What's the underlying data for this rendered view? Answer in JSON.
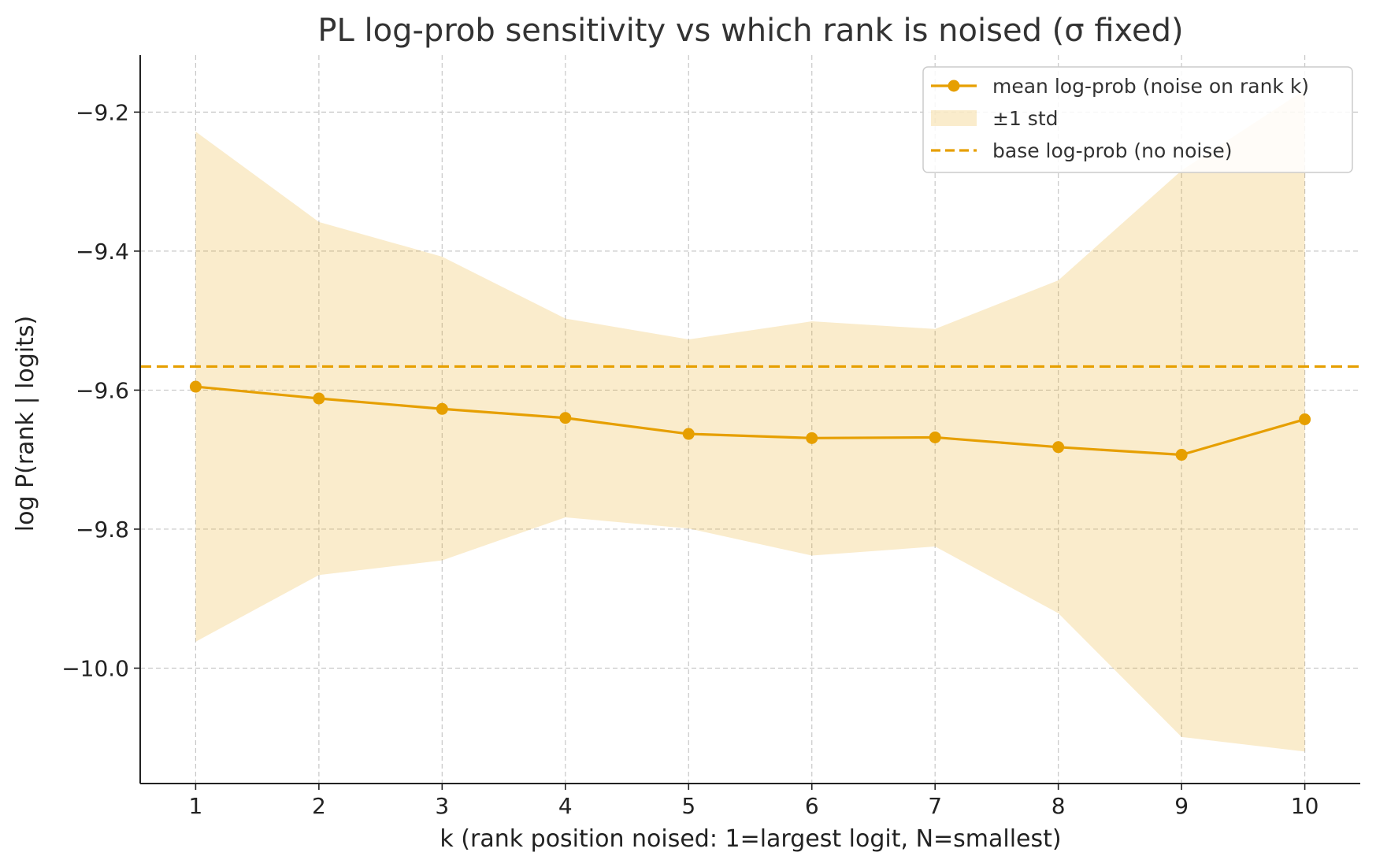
{
  "chart_data": {
    "type": "line",
    "title": "PL log-prob sensitivity vs which rank is noised (σ fixed)",
    "xlabel": "k (rank position noised: 1=largest logit, N=smallest)",
    "ylabel": "log P(rank | logits)",
    "x": [
      1,
      2,
      3,
      4,
      5,
      6,
      7,
      8,
      9,
      10
    ],
    "xticks": [
      "1",
      "2",
      "3",
      "4",
      "5",
      "6",
      "7",
      "8",
      "9",
      "10"
    ],
    "xlim": [
      0.55,
      10.45
    ],
    "ylim": [
      -10.166,
      -9.118
    ],
    "yticks": [
      -9.2,
      -9.4,
      -9.6,
      -9.8,
      -10.0
    ],
    "ytick_labels": [
      "−9.2",
      "−9.4",
      "−9.6",
      "−9.8",
      "−10.0"
    ],
    "grid": true,
    "legend_position": "top-right",
    "series": [
      {
        "name": "mean log-prob (noise on rank k)",
        "kind": "line-marker",
        "color": "#E69F00",
        "values": [
          -9.595,
          -9.612,
          -9.627,
          -9.64,
          -9.663,
          -9.669,
          -9.668,
          -9.682,
          -9.693,
          -9.642
        ]
      },
      {
        "name": "±1 std",
        "kind": "band",
        "color": "#E69F00",
        "upper": [
          -9.228,
          -9.358,
          -9.408,
          -9.497,
          -9.527,
          -9.501,
          -9.512,
          -9.442,
          -9.284,
          -9.168
        ],
        "lower": [
          -9.962,
          -9.866,
          -9.845,
          -9.783,
          -9.799,
          -9.838,
          -9.825,
          -9.921,
          -10.099,
          -10.12
        ]
      },
      {
        "name": "base log-prob (no noise)",
        "kind": "hline",
        "color": "#E69F00",
        "value": -9.566
      }
    ]
  }
}
